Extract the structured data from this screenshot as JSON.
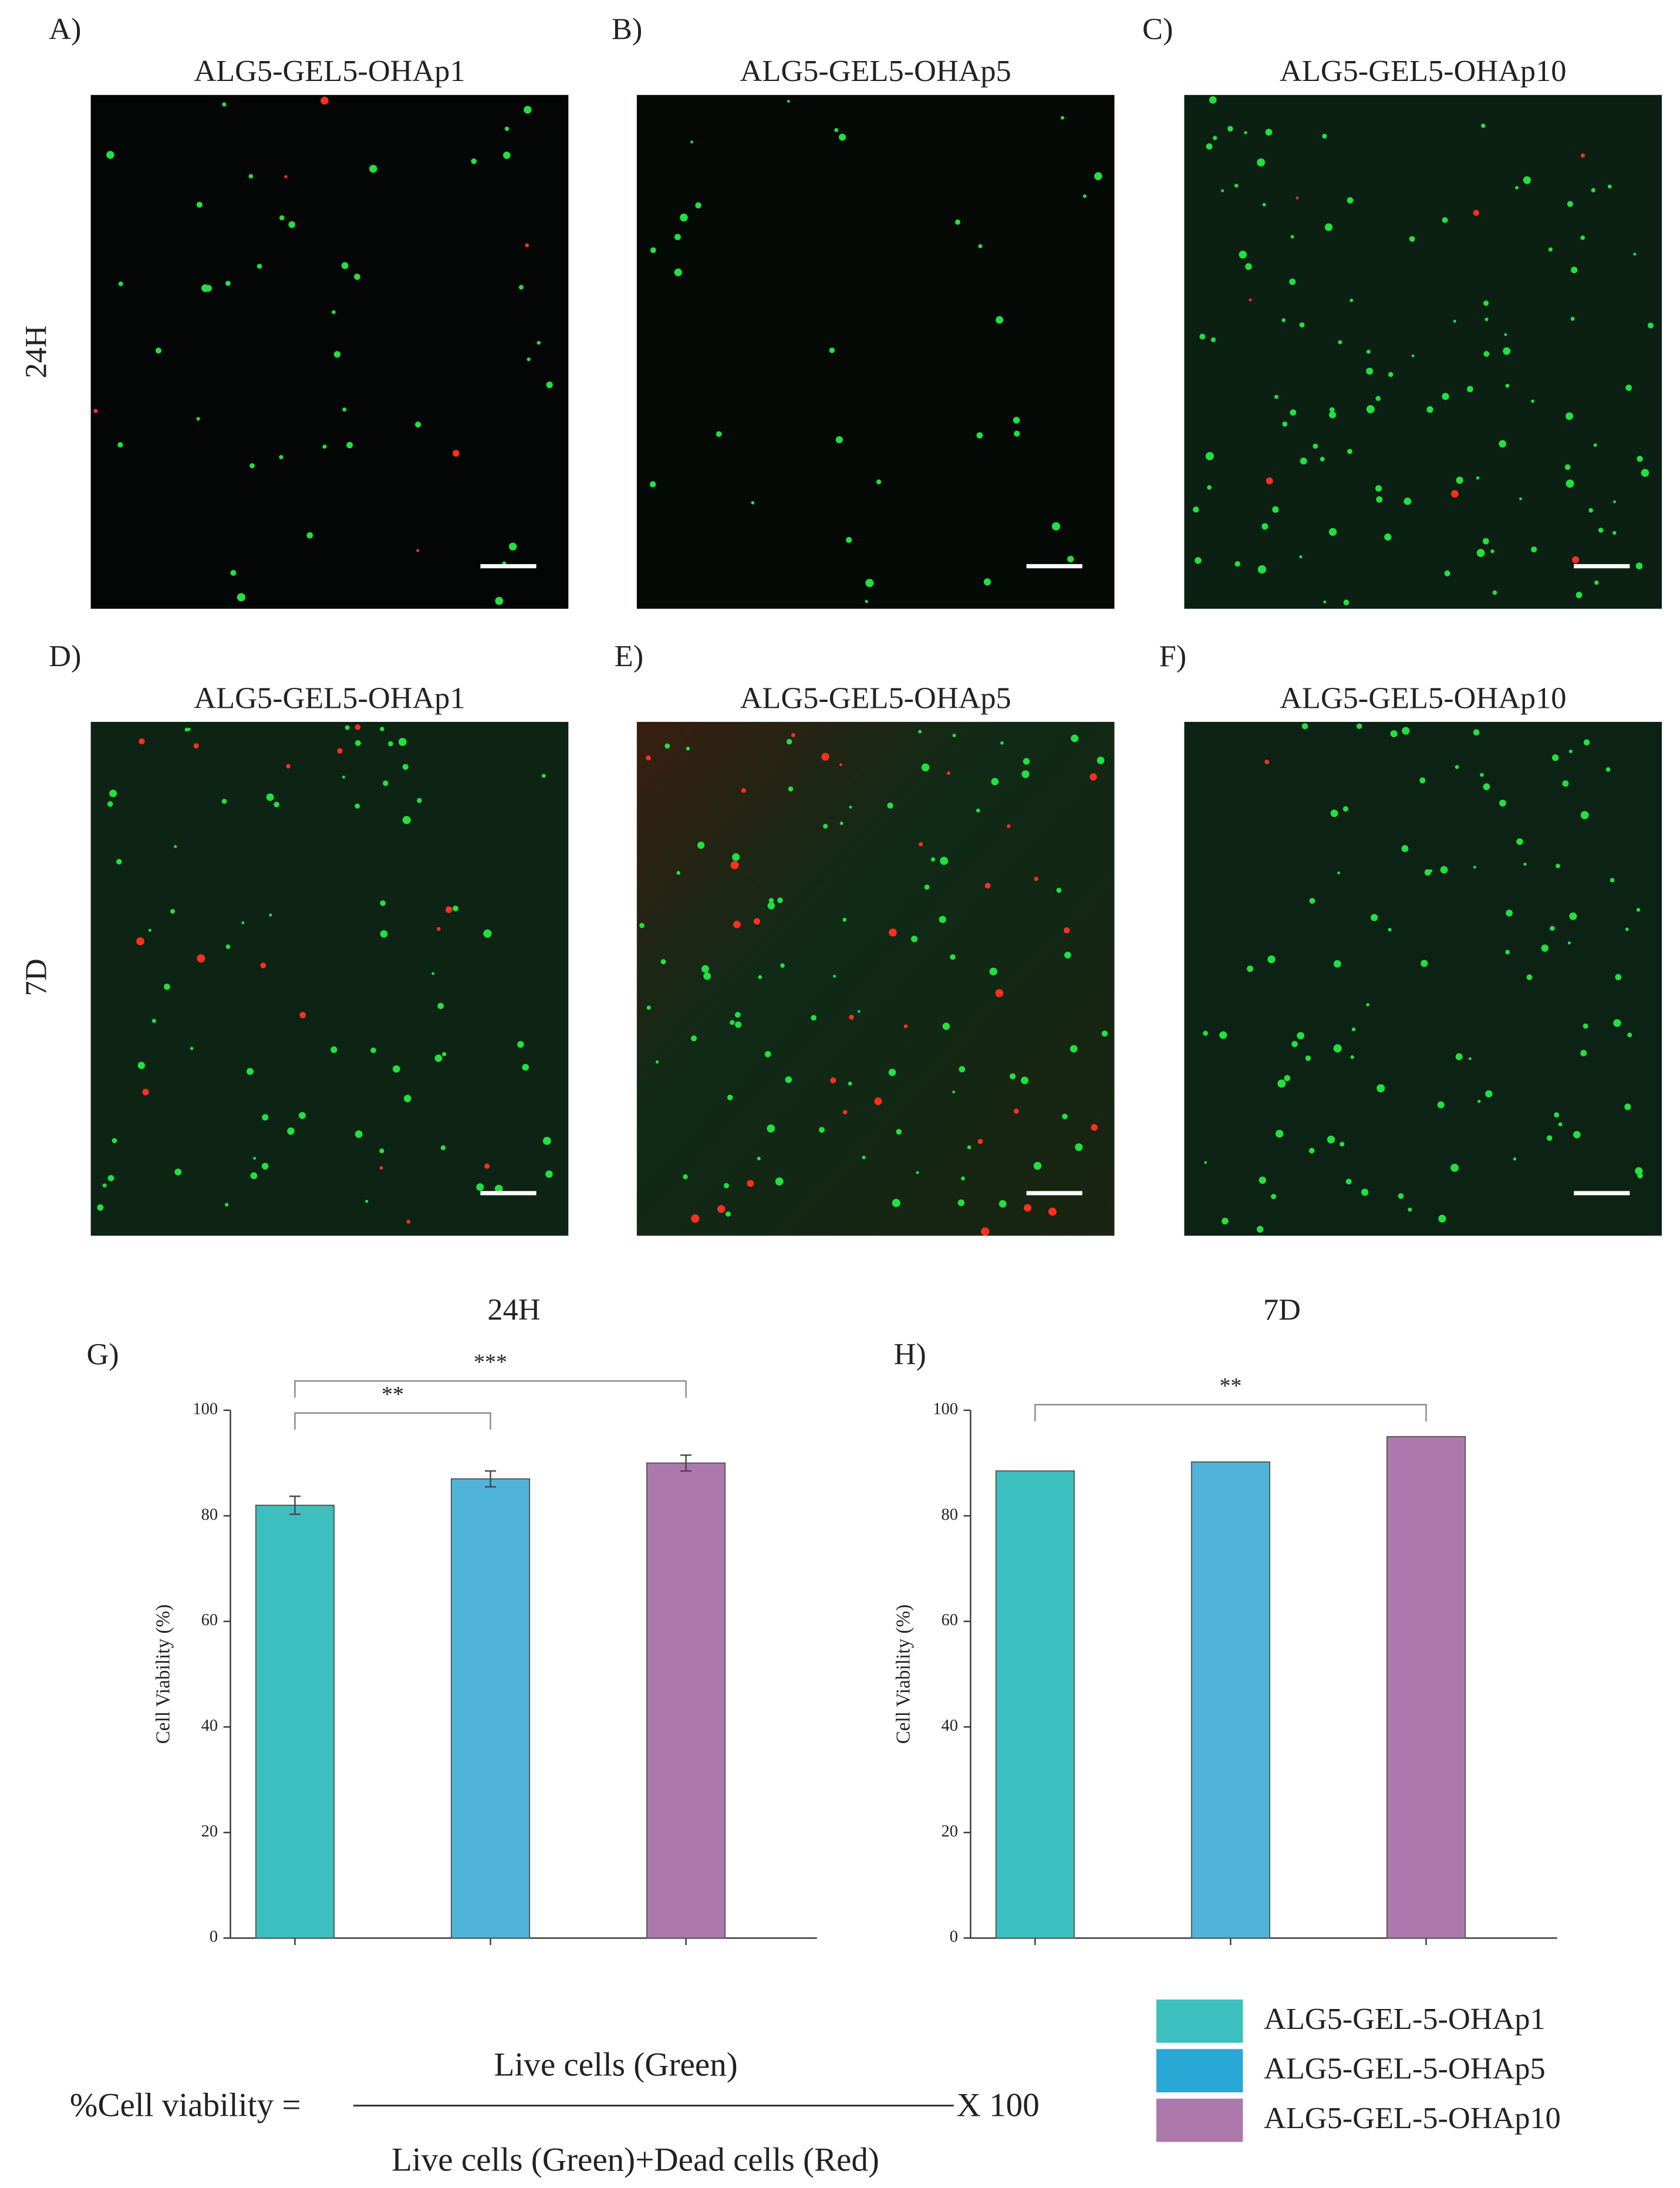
{
  "panels": [
    {
      "label": "A)",
      "title": "ALG5-GEL5-OHAp1"
    },
    {
      "label": "B)",
      "title": "ALG5-GEL5-OHAp5"
    },
    {
      "label": "C)",
      "title": "ALG5-GEL5-OHAp10"
    },
    {
      "label": "D)",
      "title": "ALG5-GEL5-OHAp1"
    },
    {
      "label": "E)",
      "title": "ALG5-GEL5-OHAp5"
    },
    {
      "label": "F)",
      "title": "ALG5-GEL5-OHAp10"
    }
  ],
  "row_labels": [
    "24H",
    "7D"
  ],
  "chart_data": [
    {
      "type": "bar",
      "label": "G)",
      "title": "24H",
      "ylabel": "Cell Viability (%)",
      "categories": [
        null,
        null,
        null
      ],
      "values": [
        82,
        87,
        90
      ],
      "errors": [
        1.7,
        1.5,
        1.5
      ],
      "colors": [
        "#3dbfbf",
        "#4fb4d8",
        "#ad79ad"
      ],
      "ylim": [
        0,
        100
      ],
      "yticks": [
        0,
        20,
        40,
        60,
        80,
        100
      ],
      "annotations": [
        "**",
        "***"
      ]
    },
    {
      "type": "bar",
      "label": "H)",
      "title": "7D",
      "ylabel": "Cell Viability (%)",
      "categories": [
        null,
        null,
        null
      ],
      "values": [
        88.5,
        90.2,
        95
      ],
      "colors": [
        "#3dbfbf",
        "#4fb4d8",
        "#ad79ad"
      ],
      "ylim": [
        0,
        100
      ],
      "yticks": [
        0,
        20,
        40,
        60,
        80,
        100
      ],
      "annotations": [
        "**"
      ]
    }
  ],
  "legend": [
    {
      "name": "ALG5-GEL-5-OHAp1",
      "color": "#3dbfbf"
    },
    {
      "name": "ALG5-GEL-5-OHAp5",
      "color": "#29a8d6"
    },
    {
      "name": "ALG5-GEL-5-OHAp10",
      "color": "#ad79ad"
    }
  ],
  "formula": {
    "lhs": "%Cell viability =",
    "numerator": "Live cells (Green)",
    "denominator": "Live cells (Green)+Dead cells (Red)",
    "multiplier": "X 100"
  }
}
